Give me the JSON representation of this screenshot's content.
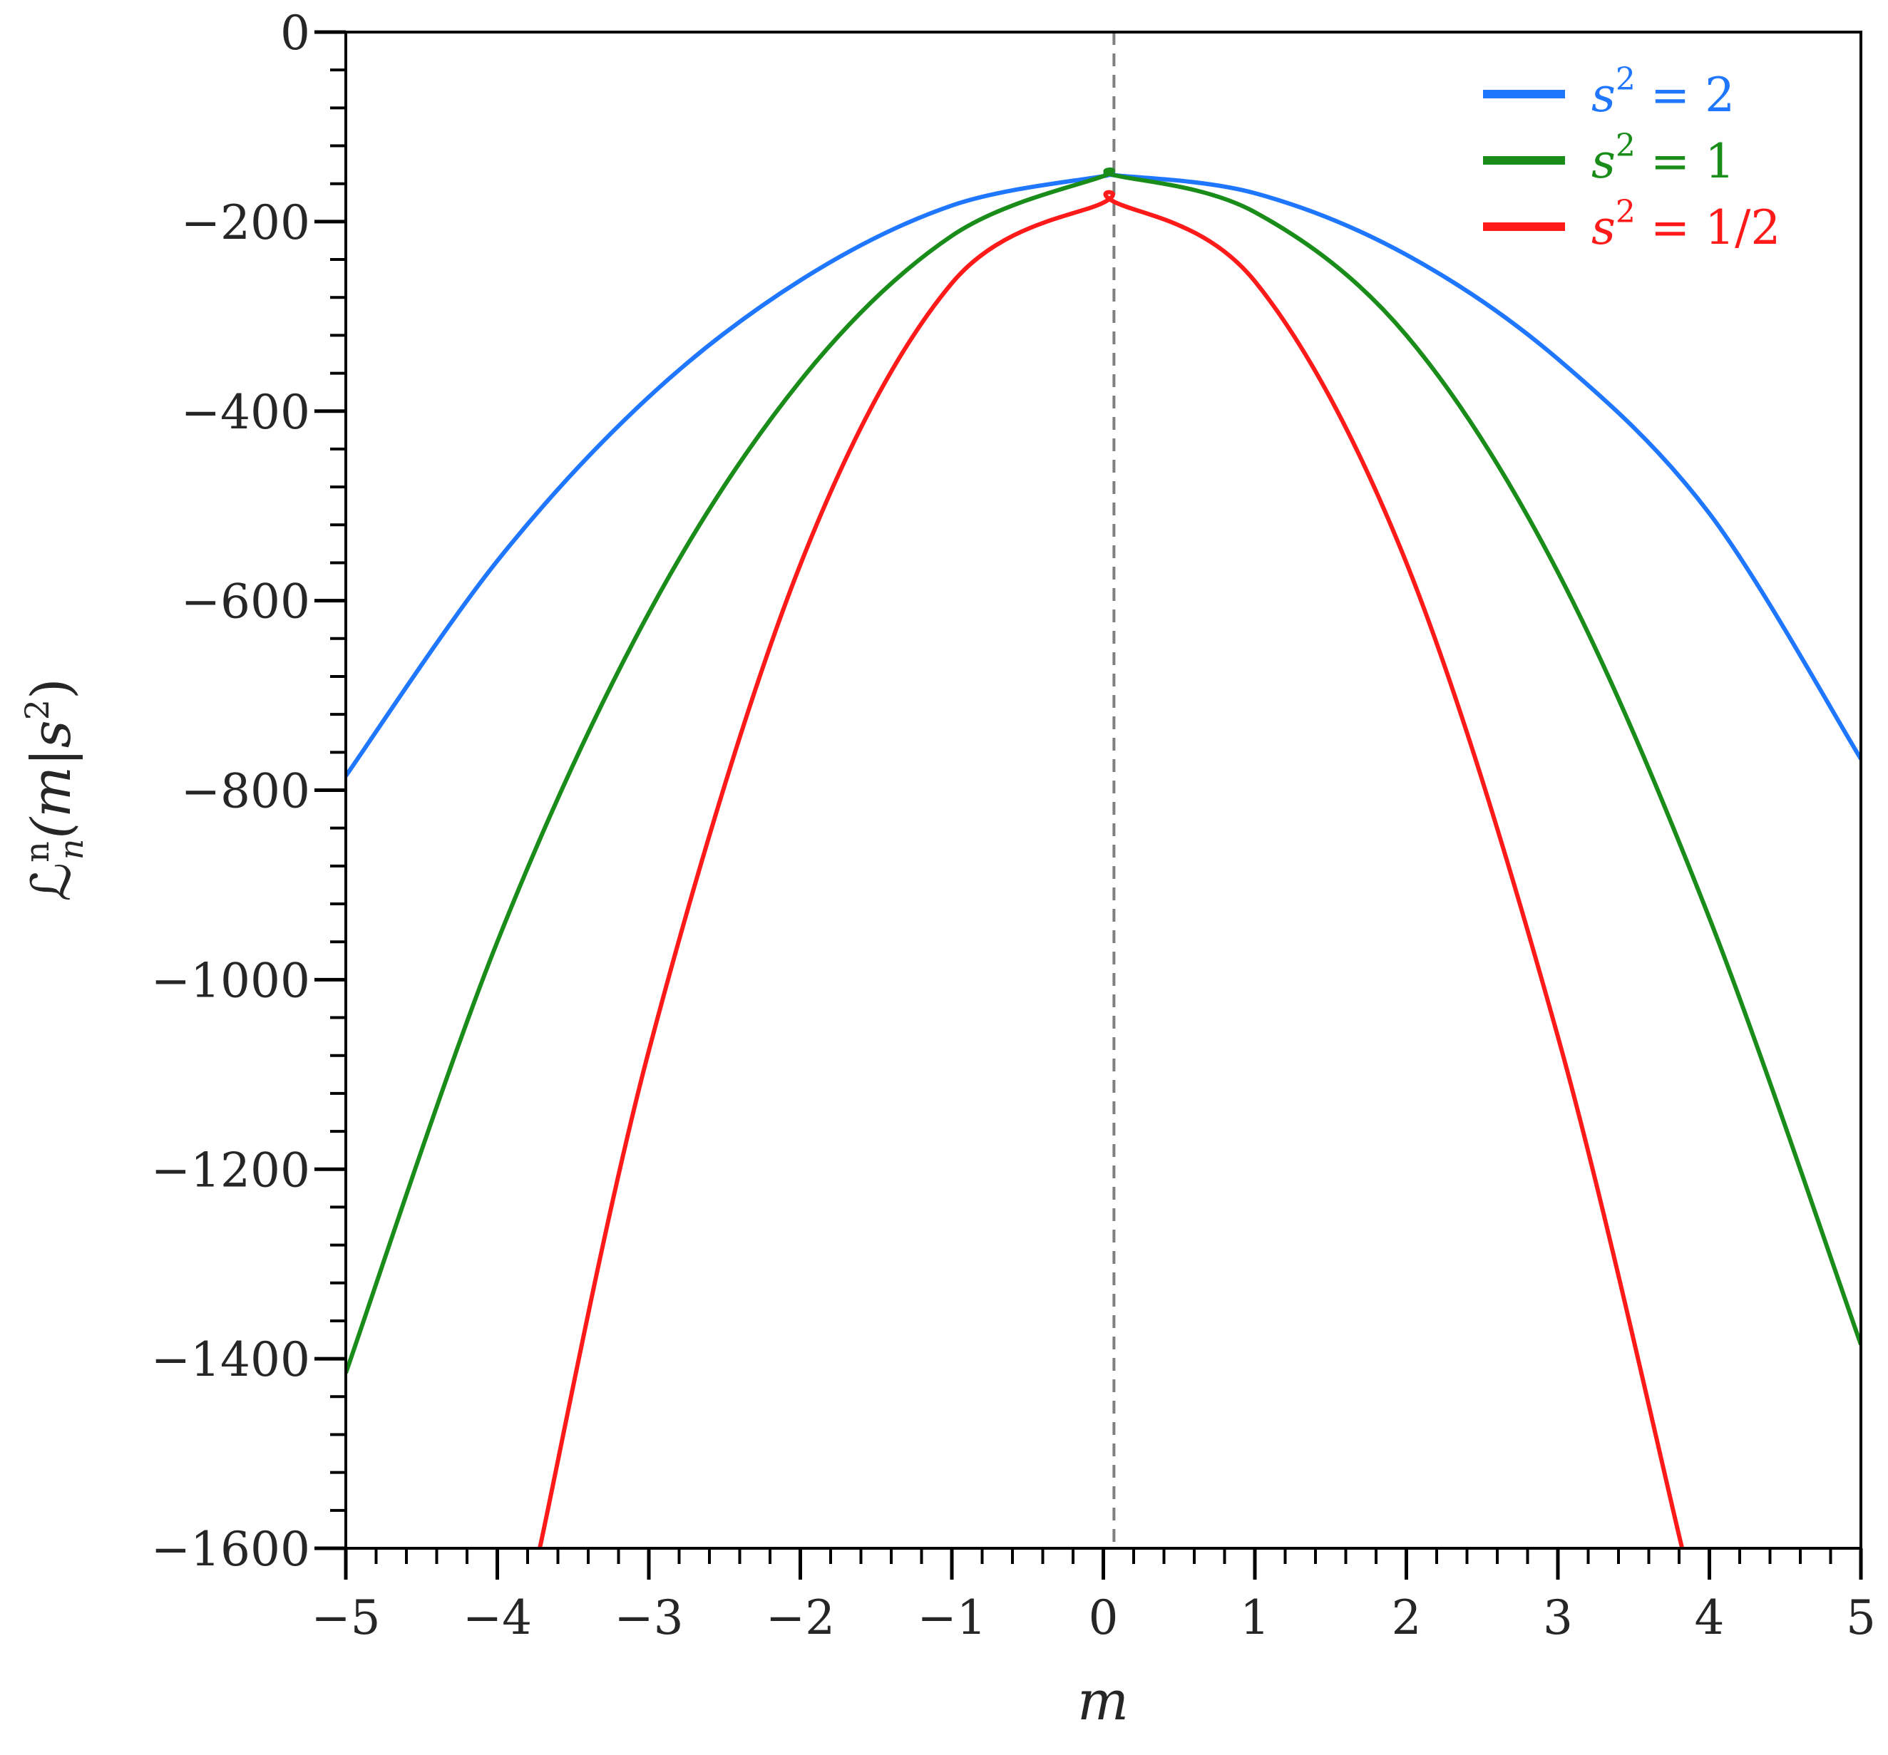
{
  "chart_data": {
    "type": "line",
    "title": "",
    "xlabel": "m",
    "ylabel": "ℒⁿₙ(m|s²)",
    "ylabel_parts": {
      "main": "ℒ",
      "sup": "n",
      "sub": "n",
      "arg": "(m|s",
      "arg_sup": "2",
      "close": ")"
    },
    "xlim": [
      -5,
      5
    ],
    "ylim": [
      -1600,
      0
    ],
    "xticks": [
      -5,
      -4,
      -3,
      -2,
      -1,
      0,
      1,
      2,
      3,
      4,
      5
    ],
    "xtick_labels": [
      "−5",
      "−4",
      "−3",
      "−2",
      "−1",
      "0",
      "1",
      "2",
      "3",
      "4",
      "5"
    ],
    "yticks": [
      0,
      -200,
      -400,
      -600,
      -800,
      -1000,
      -1200,
      -1400,
      -1600
    ],
    "ytick_labels": [
      "0",
      "−200",
      "−400",
      "−600",
      "−800",
      "−1000",
      "−1200",
      "−1400",
      "−1600"
    ],
    "x_minor_step": 0.2,
    "y_minor_step": 40,
    "grid": false,
    "vline": {
      "x": 0.07,
      "style": "dashed",
      "color": "#808080"
    },
    "legend_position": "top-right",
    "series": [
      {
        "name": "s² = 2",
        "label_base": "s",
        "label_sup": "2",
        "label_rest": " = 2",
        "color": "#1f77ff",
        "x": [
          -5,
          -4,
          -3,
          -2,
          -1,
          0,
          0.07,
          1,
          2,
          3,
          4,
          5
        ],
        "y": [
          -785,
          -558,
          -385,
          -262,
          -183,
          -152,
          -151,
          -170,
          -235,
          -345,
          -508,
          -767
        ]
      },
      {
        "name": "s² = 1",
        "label_base": "s",
        "label_sup": "2",
        "label_rest": " = 1",
        "color": "#1a8c1a",
        "x": [
          -5,
          -4,
          -3,
          -2,
          -1,
          0,
          0.07,
          1,
          2,
          3,
          4,
          5
        ],
        "y": [
          -1415,
          -960,
          -613,
          -368,
          -215,
          -152,
          -151,
          -190,
          -320,
          -570,
          -935,
          -1385
        ]
      },
      {
        "name": "s² = 1/2",
        "label_base": "s",
        "label_sup": "2",
        "label_rest": " = 1/2",
        "color": "#ff1a1a",
        "x": [
          -3.72,
          -3,
          -2,
          -1,
          0,
          0.07,
          1,
          2,
          3,
          3.82
        ],
        "y": [
          -1600,
          -1075,
          -562,
          -265,
          -180,
          -179,
          -263,
          -560,
          -1060,
          -1600
        ]
      }
    ]
  }
}
